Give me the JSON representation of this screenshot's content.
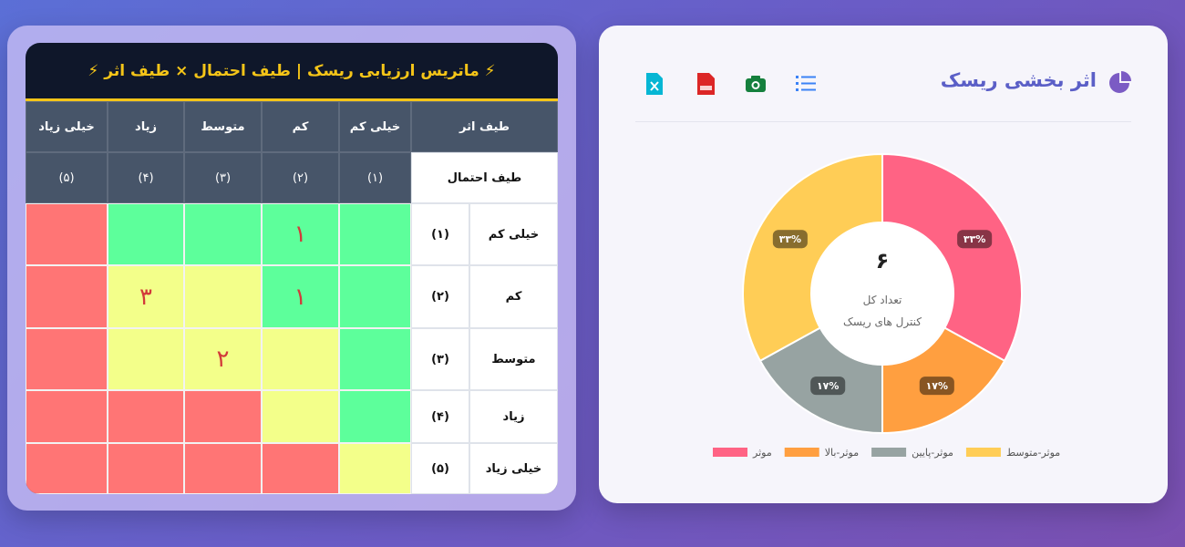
{
  "header": {
    "title": "اثر بخشی ریسک"
  },
  "chart_data": {
    "type": "pie",
    "donut": true,
    "categories": [
      "موثر",
      "موثر-بالا",
      "موثر-پایین",
      "موثر-متوسط"
    ],
    "values": [
      33,
      17,
      17,
      33
    ],
    "value_labels": [
      "۳۳%",
      "۱۷%",
      "۱۷%",
      "۳۳%"
    ],
    "colors": [
      "#ff6384",
      "#ff9f40",
      "#97a3a2",
      "#ffcd56"
    ],
    "center_value": "۶",
    "center_label": [
      "تعداد کل",
      "کنترل های ریسک"
    ]
  },
  "matrix": {
    "title": "⚡ ماتریس ارزیابی ریسک | طیف احتمال × طیف اثر ⚡",
    "impact_header": "طیف اثر",
    "probability_header": "طیف احتمال",
    "columns": [
      {
        "label": "خیلی کم",
        "code": "(۱)"
      },
      {
        "label": "کم",
        "code": "(۲)"
      },
      {
        "label": "متوسط",
        "code": "(۳)"
      },
      {
        "label": "زیاد",
        "code": "(۴)"
      },
      {
        "label": "خیلی زیاد",
        "code": "(۵)"
      }
    ],
    "rows": [
      {
        "label": "خیلی کم",
        "code": "(۱)",
        "cells": [
          {
            "color": "#5dff9b"
          },
          {
            "color": "#5dff9b",
            "count": "۱"
          },
          {
            "color": "#5dff9b"
          },
          {
            "color": "#5dff9b"
          },
          {
            "color": "#ff7575"
          }
        ]
      },
      {
        "label": "کم",
        "code": "(۲)",
        "cells": [
          {
            "color": "#5dff9b"
          },
          {
            "color": "#5dff9b",
            "count": "۱"
          },
          {
            "color": "#f3ff8a"
          },
          {
            "color": "#f3ff8a",
            "count": "۳"
          },
          {
            "color": "#ff7575"
          }
        ]
      },
      {
        "label": "متوسط",
        "code": "(۳)",
        "cells": [
          {
            "color": "#5dff9b"
          },
          {
            "color": "#f3ff8a"
          },
          {
            "color": "#f3ff8a",
            "count": "۲"
          },
          {
            "color": "#f3ff8a"
          },
          {
            "color": "#ff7575"
          }
        ]
      },
      {
        "label": "زیاد",
        "code": "(۴)",
        "cells": [
          {
            "color": "#5dff9b"
          },
          {
            "color": "#f3ff8a"
          },
          {
            "color": "#ff7575"
          },
          {
            "color": "#ff7575"
          },
          {
            "color": "#ff7575"
          }
        ]
      },
      {
        "label": "خیلی زیاد",
        "code": "(۵)",
        "cells": [
          {
            "color": "#f3ff8a"
          },
          {
            "color": "#ff7575"
          },
          {
            "color": "#ff7575"
          },
          {
            "color": "#ff7575"
          },
          {
            "color": "#ff7575"
          }
        ]
      }
    ]
  }
}
